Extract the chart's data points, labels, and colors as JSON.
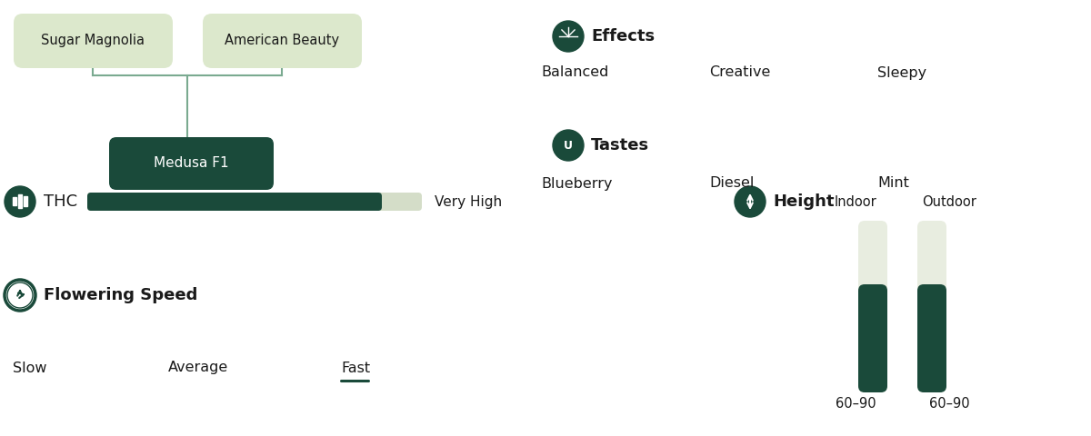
{
  "bg_color": "#ffffff",
  "dark_green": "#1a4a3a",
  "light_green_box": "#dce8cc",
  "light_bar_end": "#d4ddc8",
  "bar_bg": "#e8ede0",
  "line_color": "#7aaa90",
  "text_color": "#1a1a1a",
  "parent1": "Sugar Magnolia",
  "parent2": "American Beauty",
  "child": "Medusa F1",
  "thc_label": "THC",
  "thc_value": "Very High",
  "thc_fill": 0.88,
  "flowering_label": "Flowering Speed",
  "flowering_ticks": [
    "Slow",
    "Average",
    "Fast"
  ],
  "flowering_active": "Fast",
  "effects_label": "Effects",
  "effects": [
    "Balanced",
    "Creative",
    "Sleepy"
  ],
  "tastes_label": "Tastes",
  "tastes": [
    "Blueberry",
    "Diesel",
    "Mint"
  ],
  "height_label": "Height",
  "height_indoor": "Indoor",
  "height_outdoor": "Outdoor",
  "height_indoor_val": "60–90",
  "height_outdoor_val": "60–90"
}
